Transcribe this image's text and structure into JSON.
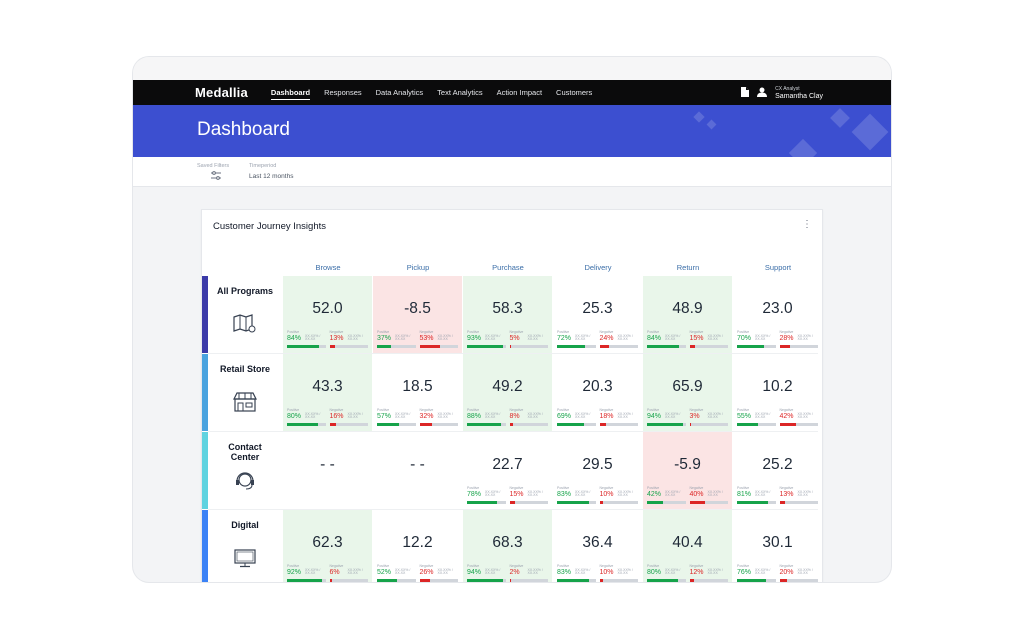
{
  "app": {
    "logo": "Medallia",
    "nav": [
      "Dashboard",
      "Responses",
      "Data Analytics",
      "Text Analytics",
      "Action Impact",
      "Customers"
    ],
    "active_nav": "Dashboard",
    "user_role": "CX Analyst",
    "user_name": "Samantha Clay",
    "icons": [
      "document-icon",
      "user-icon"
    ]
  },
  "banner": {
    "title": "Dashboard",
    "color": "#3c4fd0"
  },
  "filters": {
    "saved_label": "Saved Filters",
    "timeperiod_label": "Timeperiod",
    "timeperiod_value": "Last 12 months"
  },
  "card": {
    "title": "Customer Journey Insights",
    "columns": [
      "Browse",
      "Pickup",
      "Purchase",
      "Delivery",
      "Return",
      "Support"
    ],
    "stat_labels": {
      "positive": "Positive",
      "negative": "Negative",
      "detail": "XX.XX% / XX.XX"
    },
    "rows": [
      {
        "label": "All Programs",
        "icon": "map-icon",
        "band_color": "#3b3aa8",
        "cells": [
          {
            "value": "52.0",
            "tone": "pos",
            "pos": 84,
            "neg": 13
          },
          {
            "value": "-8.5",
            "tone": "neg",
            "pos": 37,
            "neg": 53
          },
          {
            "value": "58.3",
            "tone": "pos",
            "pos": 93,
            "neg": 5
          },
          {
            "value": "25.3",
            "tone": "none",
            "pos": 72,
            "neg": 24
          },
          {
            "value": "48.9",
            "tone": "pos",
            "pos": 84,
            "neg": 15
          },
          {
            "value": "23.0",
            "tone": "none",
            "pos": 70,
            "neg": 28
          }
        ]
      },
      {
        "label": "Retail Store",
        "icon": "store-icon",
        "band_color": "#4aa3df",
        "cells": [
          {
            "value": "43.3",
            "tone": "pos",
            "pos": 80,
            "neg": 16
          },
          {
            "value": "18.5",
            "tone": "none",
            "pos": 57,
            "neg": 32
          },
          {
            "value": "49.2",
            "tone": "pos",
            "pos": 88,
            "neg": 8
          },
          {
            "value": "20.3",
            "tone": "none",
            "pos": 69,
            "neg": 18
          },
          {
            "value": "65.9",
            "tone": "pos",
            "pos": 94,
            "neg": 3
          },
          {
            "value": "10.2",
            "tone": "none",
            "pos": 55,
            "neg": 42
          }
        ]
      },
      {
        "label": "Contact Center",
        "icon": "headset-icon",
        "band_color": "#5fd3e0",
        "cells": [
          {
            "value": "- -",
            "tone": "none",
            "pos": null,
            "neg": null
          },
          {
            "value": "- -",
            "tone": "none",
            "pos": null,
            "neg": null
          },
          {
            "value": "22.7",
            "tone": "none",
            "pos": 78,
            "neg": 15
          },
          {
            "value": "29.5",
            "tone": "none",
            "pos": 83,
            "neg": 10
          },
          {
            "value": "-5.9",
            "tone": "neg",
            "pos": 42,
            "neg": 40
          },
          {
            "value": "25.2",
            "tone": "none",
            "pos": 81,
            "neg": 13
          }
        ]
      },
      {
        "label": "Digital",
        "icon": "monitor-icon",
        "band_color": "#3b82f6",
        "cells": [
          {
            "value": "62.3",
            "tone": "pos",
            "pos": 92,
            "neg": 6
          },
          {
            "value": "12.2",
            "tone": "none",
            "pos": 52,
            "neg": 26
          },
          {
            "value": "68.3",
            "tone": "pos",
            "pos": 94,
            "neg": 2
          },
          {
            "value": "36.4",
            "tone": "none",
            "pos": 83,
            "neg": 10
          },
          {
            "value": "40.4",
            "tone": "pos",
            "pos": 80,
            "neg": 12
          },
          {
            "value": "30.1",
            "tone": "none",
            "pos": 76,
            "neg": 20
          }
        ]
      }
    ]
  }
}
